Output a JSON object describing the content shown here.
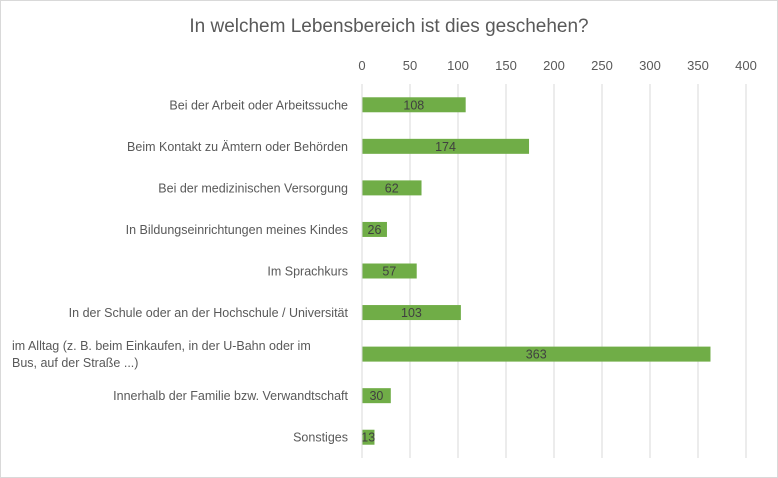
{
  "chart_data": {
    "type": "bar",
    "orientation": "horizontal",
    "title": "In welchem Lebensbereich  ist dies geschehen?",
    "categories": [
      [
        "Bei der Arbeit oder Arbeitssuche"
      ],
      [
        "Beim Kontakt zu Ämtern oder Behörden"
      ],
      [
        "Bei der medizinischen Versorgung"
      ],
      [
        "In Bildungseinrichtungen meines Kindes"
      ],
      [
        "Im Sprachkurs"
      ],
      [
        "In der Schule oder an der Hochschule / Universität"
      ],
      [
        "im Alltag (z. B. beim Einkaufen, in der U-Bahn oder im",
        "Bus, auf der Straße ...)"
      ],
      [
        "Innerhalb der Familie bzw. Verwandtschaft"
      ],
      [
        "Sonstiges"
      ]
    ],
    "values": [
      108,
      174,
      62,
      26,
      57,
      103,
      363,
      30,
      13
    ],
    "xlim": [
      0,
      400
    ],
    "xticks": [
      "0",
      "50",
      "100",
      "150",
      "200",
      "250",
      "300",
      "350",
      "400"
    ],
    "xaxis_position": "top",
    "grid": "vertical",
    "legend": "none",
    "colors": {
      "bar": "#70ad47",
      "grid": "#d9d9d9",
      "text": "#595959"
    }
  }
}
